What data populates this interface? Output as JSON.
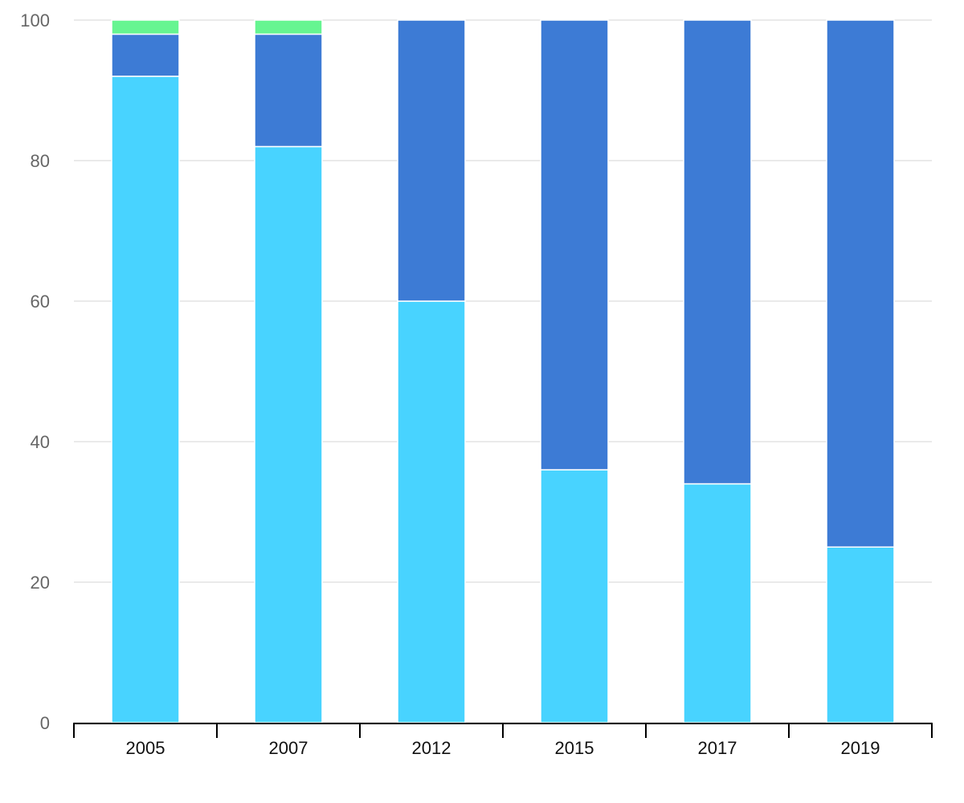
{
  "chart_data": {
    "type": "stacked_bar",
    "categories": [
      "2005",
      "2007",
      "2012",
      "2015",
      "2017",
      "2019"
    ],
    "series": [
      {
        "color": "#48d3ff",
        "values": [
          92,
          82,
          60,
          36,
          34,
          25
        ]
      },
      {
        "color": "#3d7bd5",
        "values": [
          6,
          16,
          40,
          64,
          66,
          75
        ]
      },
      {
        "color": "#66f591",
        "values": [
          2,
          2,
          0,
          0,
          0,
          0
        ]
      }
    ],
    "ylim": [
      0,
      100
    ],
    "yticks": [
      0,
      20,
      40,
      60,
      80,
      100
    ],
    "grid": true
  }
}
